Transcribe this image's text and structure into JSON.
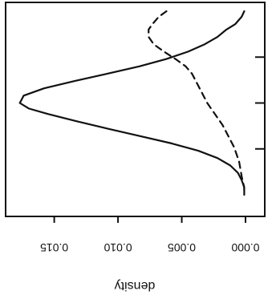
{
  "chart_data": {
    "type": "line",
    "orientation": "rotated-180",
    "density_axis": {
      "label": "density",
      "range": [
        0.0,
        0.0185
      ],
      "ticks": [
        0.0,
        0.005,
        0.01,
        0.015
      ],
      "tick_labels": [
        "0.000",
        "0.005",
        "0.010",
        "0.015"
      ]
    },
    "value_axis": {
      "range": [
        0,
        100
      ],
      "ticks": [
        25,
        50,
        75
      ],
      "tick_labels": [
        "",
        "",
        ""
      ]
    },
    "series": [
      {
        "style": "solid",
        "color": "#111111",
        "x": [
          100,
          97,
          93,
          90,
          86,
          82,
          78,
          74,
          70,
          66,
          62,
          58,
          54,
          50,
          47,
          44,
          40,
          36,
          32,
          28,
          24,
          20,
          16,
          12,
          8,
          4,
          0
        ],
        "y": [
          0.0001,
          0.0003,
          0.0008,
          0.0015,
          0.0022,
          0.0032,
          0.0045,
          0.0062,
          0.0083,
          0.0108,
          0.0134,
          0.0158,
          0.0174,
          0.0177,
          0.017,
          0.0155,
          0.0132,
          0.0108,
          0.0083,
          0.0058,
          0.0037,
          0.0022,
          0.0012,
          0.0006,
          0.0003,
          0.0001,
          0.0001
        ]
      },
      {
        "style": "dashed",
        "color": "#111111",
        "x": [
          100,
          97,
          93,
          90,
          86,
          82,
          78,
          74,
          70,
          66,
          62,
          58,
          54,
          50,
          46,
          42,
          38,
          34,
          30,
          26,
          22,
          18,
          14,
          10,
          7,
          4,
          0
        ],
        "y": [
          0.0062,
          0.0068,
          0.0073,
          0.0076,
          0.0076,
          0.0072,
          0.0064,
          0.0055,
          0.0047,
          0.0042,
          0.0039,
          0.0036,
          0.0033,
          0.003,
          0.0026,
          0.0022,
          0.0018,
          0.0015,
          0.0012,
          0.0009,
          0.0007,
          0.0005,
          0.0004,
          0.0003,
          0.0002,
          0.0001,
          0.0001
        ]
      }
    ],
    "grid": false,
    "legend": "none"
  }
}
